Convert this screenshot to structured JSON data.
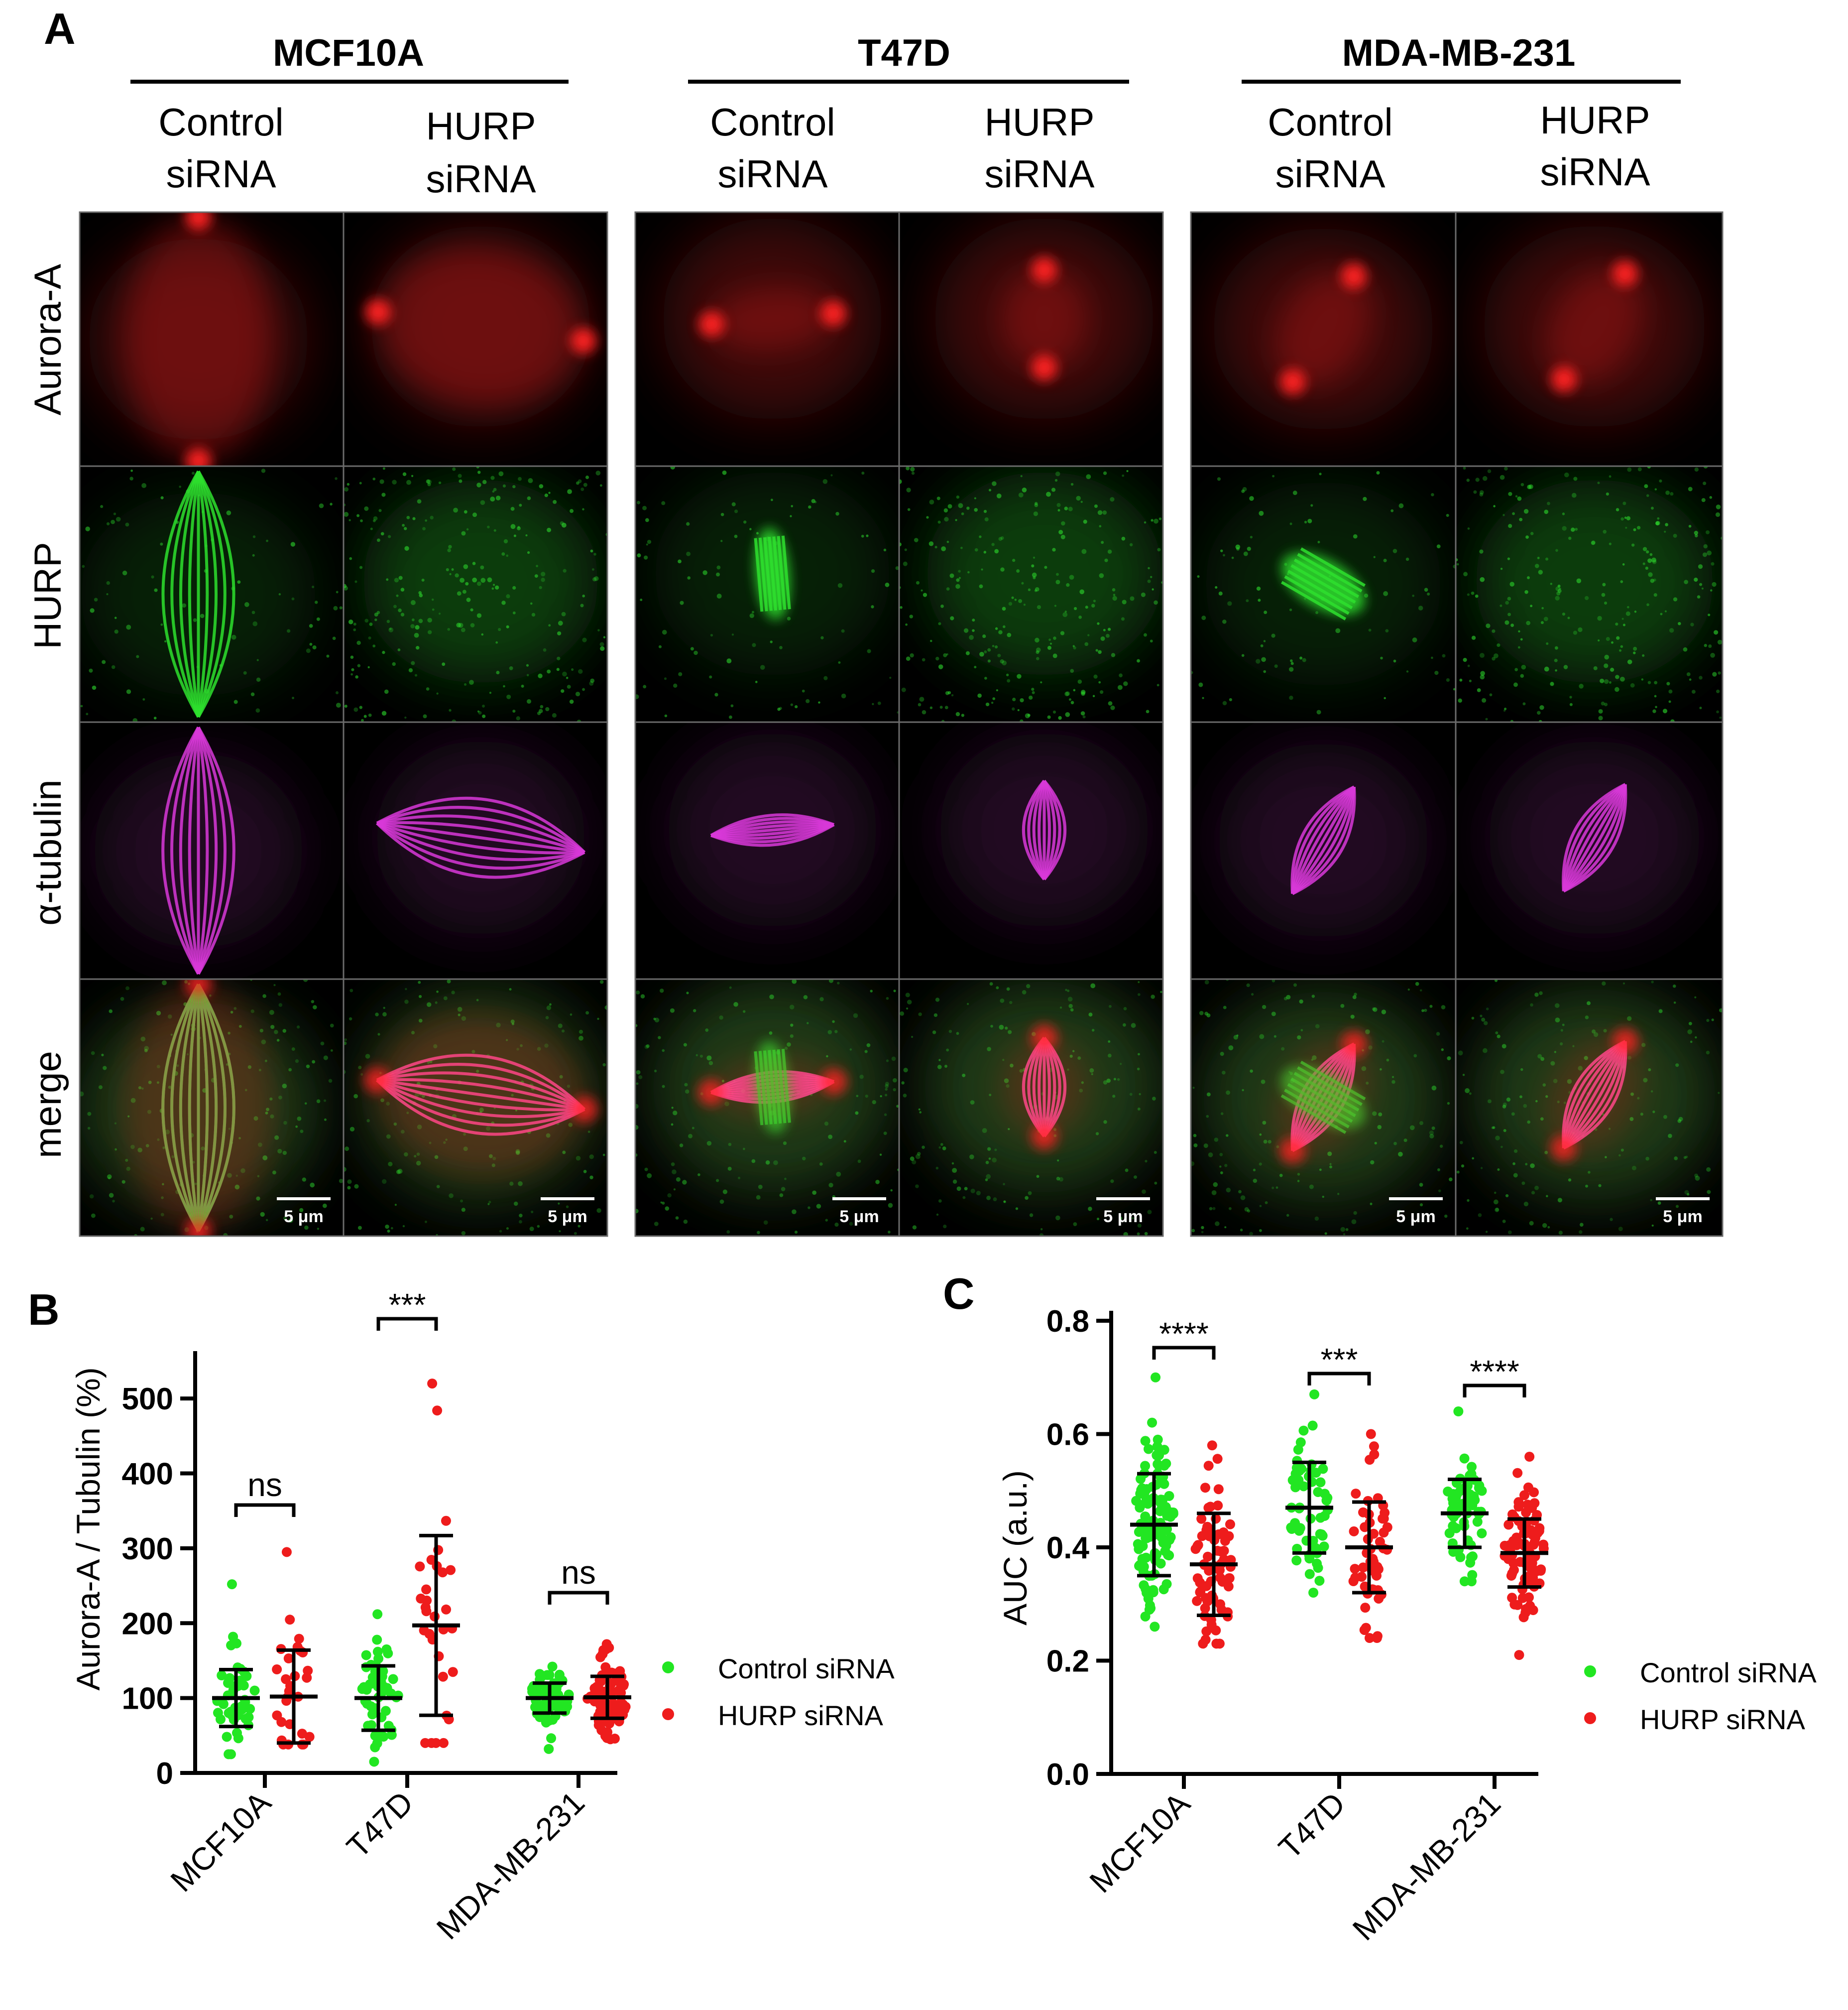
{
  "panel_a": {
    "letter": "A",
    "cell_lines": [
      "MCF10A",
      "T47D",
      "MDA-MB-231"
    ],
    "conditions": [
      [
        "Control",
        "siRNA"
      ],
      [
        "HURP",
        "siRNA"
      ]
    ],
    "row_labels": [
      "Aurora-A",
      "HURP",
      "α-tubulin",
      "merge"
    ],
    "scale_bar_label": "5 μm",
    "channel_colors": {
      "aurora_a": "#ff2020",
      "hurp": "#2ee02e",
      "tubulin": "#d838d8",
      "merge_pink": "#ff50a0",
      "background": "#000000"
    }
  },
  "chart_data": [
    {
      "panel_letter": "B",
      "type": "scatter",
      "ylabel": "Aurora-A / Tubulin (%)",
      "xlabel": "",
      "categories": [
        "MCF10A",
        "T47D",
        "MDA-MB-231"
      ],
      "ylim": [
        0,
        550
      ],
      "yticks": [
        "0",
        "100",
        "200",
        "300",
        "400",
        "500"
      ],
      "legend_position": "right",
      "series": [
        {
          "name": "Control siRNA",
          "color": "#22e622",
          "groups": [
            {
              "n": 45,
              "mean": 100,
              "sd": 38,
              "min": 25,
              "max": 252
            },
            {
              "n": 50,
              "mean": 100,
              "sd": 43,
              "min": 15,
              "max": 212
            },
            {
              "n": 75,
              "mean": 100,
              "sd": 20,
              "min": 32,
              "max": 142
            }
          ]
        },
        {
          "name": "HURP siRNA",
          "color": "#ee1c1c",
          "groups": [
            {
              "n": 28,
              "mean": 102,
              "sd": 62,
              "min": 38,
              "max": 295
            },
            {
              "n": 30,
              "mean": 197,
              "sd": 120,
              "min": 40,
              "max": 520
            },
            {
              "n": 85,
              "mean": 101,
              "sd": 28,
              "min": 45,
              "max": 172
            }
          ]
        }
      ],
      "significance": [
        {
          "category": "MCF10A",
          "label": "ns"
        },
        {
          "category": "T47D",
          "label": "***"
        },
        {
          "category": "MDA-MB-231",
          "label": "ns"
        }
      ]
    },
    {
      "panel_letter": "C",
      "type": "scatter",
      "ylabel": "AUC (a.u.)",
      "xlabel": "",
      "categories": [
        "MCF10A",
        "T47D",
        "MDA-MB-231"
      ],
      "ylim": [
        0,
        0.8
      ],
      "yticks": [
        "0.0",
        "0.2",
        "0.4",
        "0.6",
        "0.8"
      ],
      "legend_position": "right",
      "series": [
        {
          "name": "Control siRNA",
          "color": "#22e622",
          "groups": [
            {
              "n": 110,
              "mean": 0.44,
              "sd": 0.09,
              "min": 0.26,
              "max": 0.7
            },
            {
              "n": 55,
              "mean": 0.47,
              "sd": 0.08,
              "min": 0.32,
              "max": 0.67
            },
            {
              "n": 60,
              "mean": 0.46,
              "sd": 0.06,
              "min": 0.34,
              "max": 0.64
            }
          ]
        },
        {
          "name": "HURP siRNA",
          "color": "#ee1c1c",
          "groups": [
            {
              "n": 70,
              "mean": 0.37,
              "sd": 0.09,
              "min": 0.23,
              "max": 0.58
            },
            {
              "n": 50,
              "mean": 0.4,
              "sd": 0.08,
              "min": 0.24,
              "max": 0.6
            },
            {
              "n": 85,
              "mean": 0.39,
              "sd": 0.06,
              "min": 0.21,
              "max": 0.56
            }
          ]
        }
      ],
      "significance": [
        {
          "category": "MCF10A",
          "label": "****"
        },
        {
          "category": "T47D",
          "label": "***"
        },
        {
          "category": "MDA-MB-231",
          "label": "****"
        }
      ]
    }
  ]
}
